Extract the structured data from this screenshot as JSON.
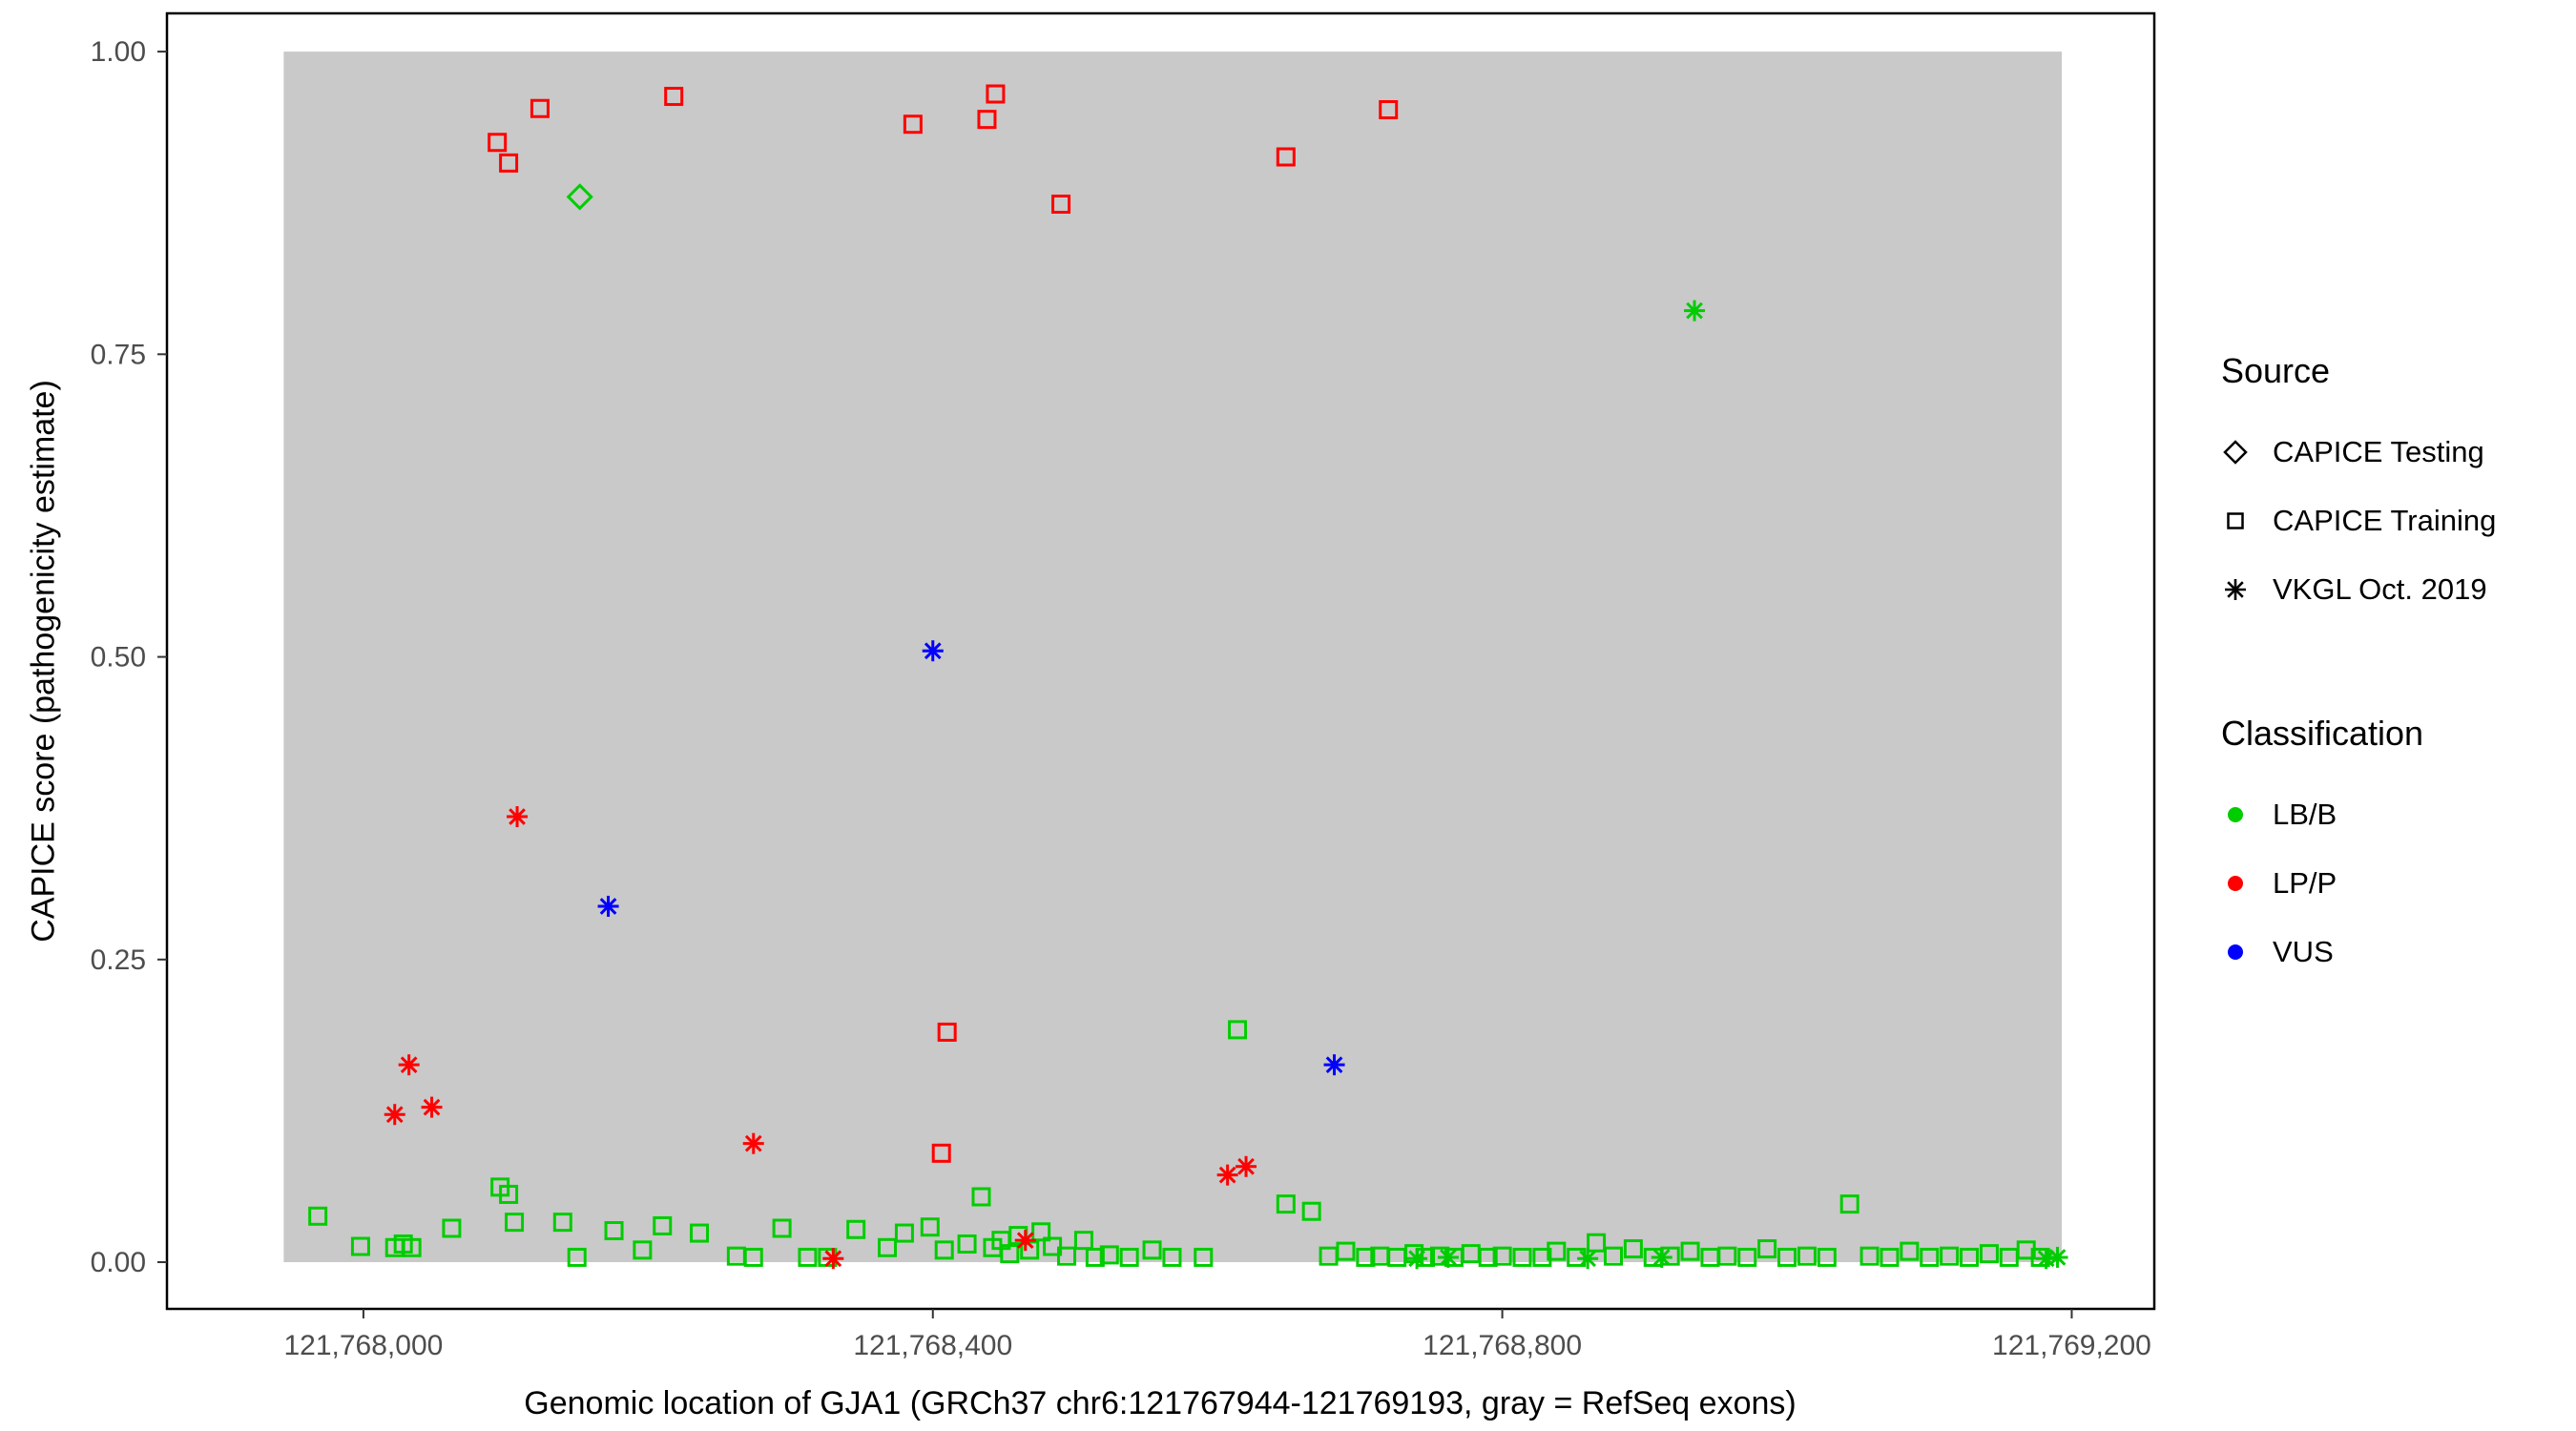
{
  "legend": {
    "source": {
      "title": "Source",
      "items": [
        {
          "label": "CAPICE Testing",
          "marker": "diamond"
        },
        {
          "label": "CAPICE Training",
          "marker": "square"
        },
        {
          "label": "VKGL Oct. 2019",
          "marker": "asterisk"
        }
      ]
    },
    "classification": {
      "title": "Classification",
      "items": [
        {
          "label": "LB/B",
          "color": "#00CD00"
        },
        {
          "label": "LP/P",
          "color": "#FF0000"
        },
        {
          "label": "VUS",
          "color": "#0000FF"
        }
      ]
    }
  },
  "chart_data": {
    "type": "scatter",
    "title": "",
    "xlabel": "Genomic location of GJA1 (GRCh37 chr6:121767944-121769193, gray = RefSeq exons)",
    "ylabel": "CAPICE score (pathogenicity estimate)",
    "xlim": [
      121767862,
      121769258
    ],
    "ylim": [
      -0.0386,
      1.0316
    ],
    "x_ticks": [
      121768000,
      121768400,
      121768800,
      121769200
    ],
    "x_tick_labels": [
      "121,768,000",
      "121,768,400",
      "121,768,800",
      "121,769,200"
    ],
    "y_ticks": [
      0,
      0.25,
      0.5,
      0.75,
      1
    ],
    "y_tick_labels": [
      "0.00",
      "0.25",
      "0.50",
      "0.75",
      "1.00"
    ],
    "grid": false,
    "legend_position": "right",
    "exon_region": {
      "start": 121767944,
      "end": 121769193,
      "color": "#C9C9C9"
    },
    "colors": {
      "LB/B": "#00CD00",
      "LP/P": "#FF0000",
      "VUS": "#0000FF"
    },
    "series": [
      {
        "name": "CAPICE Testing",
        "shape": "diamond",
        "points": [
          [
            121768152,
            0.88,
            "LB/B"
          ]
        ]
      },
      {
        "name": "CAPICE Training",
        "shape": "square",
        "points": [
          [
            121768094,
            0.925,
            "LP/P"
          ],
          [
            121768102,
            0.908,
            "LP/P"
          ],
          [
            121768124,
            0.953,
            "LP/P"
          ],
          [
            121768218,
            0.963,
            "LP/P"
          ],
          [
            121768386,
            0.94,
            "LP/P"
          ],
          [
            121768438,
            0.944,
            "LP/P"
          ],
          [
            121768444,
            0.965,
            "LP/P"
          ],
          [
            121768490,
            0.874,
            "LP/P"
          ],
          [
            121768648,
            0.913,
            "LP/P"
          ],
          [
            121768720,
            0.952,
            "LP/P"
          ],
          [
            121768410,
            0.19,
            "LP/P"
          ],
          [
            121768406,
            0.09,
            "LP/P"
          ],
          [
            121767968,
            0.038,
            "LB/B"
          ],
          [
            121767998,
            0.013,
            "LB/B"
          ],
          [
            121768022,
            0.012,
            "LB/B"
          ],
          [
            121768028,
            0.015,
            "LB/B"
          ],
          [
            121768034,
            0.012,
            "LB/B"
          ],
          [
            121768062,
            0.028,
            "LB/B"
          ],
          [
            121768096,
            0.062,
            "LB/B"
          ],
          [
            121768102,
            0.056,
            "LB/B"
          ],
          [
            121768106,
            0.033,
            "LB/B"
          ],
          [
            121768140,
            0.033,
            "LB/B"
          ],
          [
            121768150,
            0.004,
            "LB/B"
          ],
          [
            121768176,
            0.026,
            "LB/B"
          ],
          [
            121768196,
            0.01,
            "LB/B"
          ],
          [
            121768210,
            0.03,
            "LB/B"
          ],
          [
            121768236,
            0.024,
            "LB/B"
          ],
          [
            121768262,
            0.005,
            "LB/B"
          ],
          [
            121768274,
            0.004,
            "LB/B"
          ],
          [
            121768294,
            0.028,
            "LB/B"
          ],
          [
            121768312,
            0.004,
            "LB/B"
          ],
          [
            121768326,
            0.004,
            "LB/B"
          ],
          [
            121768346,
            0.027,
            "LB/B"
          ],
          [
            121768368,
            0.012,
            "LB/B"
          ],
          [
            121768380,
            0.024,
            "LB/B"
          ],
          [
            121768398,
            0.029,
            "LB/B"
          ],
          [
            121768408,
            0.01,
            "LB/B"
          ],
          [
            121768424,
            0.015,
            "LB/B"
          ],
          [
            121768434,
            0.054,
            "LB/B"
          ],
          [
            121768442,
            0.012,
            "LB/B"
          ],
          [
            121768448,
            0.018,
            "LB/B"
          ],
          [
            121768454,
            0.007,
            "LB/B"
          ],
          [
            121768460,
            0.022,
            "LB/B"
          ],
          [
            121768468,
            0.01,
            "LB/B"
          ],
          [
            121768476,
            0.025,
            "LB/B"
          ],
          [
            121768484,
            0.013,
            "LB/B"
          ],
          [
            121768494,
            0.005,
            "LB/B"
          ],
          [
            121768506,
            0.018,
            "LB/B"
          ],
          [
            121768514,
            0.004,
            "LB/B"
          ],
          [
            121768524,
            0.006,
            "LB/B"
          ],
          [
            121768538,
            0.004,
            "LB/B"
          ],
          [
            121768554,
            0.01,
            "LB/B"
          ],
          [
            121768568,
            0.004,
            "LB/B"
          ],
          [
            121768590,
            0.004,
            "LB/B"
          ],
          [
            121768614,
            0.192,
            "LB/B"
          ],
          [
            121768648,
            0.048,
            "LB/B"
          ],
          [
            121768666,
            0.042,
            "LB/B"
          ],
          [
            121768678,
            0.005,
            "LB/B"
          ],
          [
            121768690,
            0.009,
            "LB/B"
          ],
          [
            121768704,
            0.004,
            "LB/B"
          ],
          [
            121768714,
            0.005,
            "LB/B"
          ],
          [
            121768726,
            0.004,
            "LB/B"
          ],
          [
            121768738,
            0.007,
            "LB/B"
          ],
          [
            121768746,
            0.004,
            "LB/B"
          ],
          [
            121768756,
            0.005,
            "LB/B"
          ],
          [
            121768766,
            0.004,
            "LB/B"
          ],
          [
            121768778,
            0.007,
            "LB/B"
          ],
          [
            121768790,
            0.004,
            "LB/B"
          ],
          [
            121768800,
            0.005,
            "LB/B"
          ],
          [
            121768814,
            0.004,
            "LB/B"
          ],
          [
            121768828,
            0.004,
            "LB/B"
          ],
          [
            121768838,
            0.009,
            "LB/B"
          ],
          [
            121768852,
            0.004,
            "LB/B"
          ],
          [
            121768866,
            0.016,
            "LB/B"
          ],
          [
            121768878,
            0.005,
            "LB/B"
          ],
          [
            121768892,
            0.011,
            "LB/B"
          ],
          [
            121768906,
            0.004,
            "LB/B"
          ],
          [
            121768918,
            0.005,
            "LB/B"
          ],
          [
            121768932,
            0.009,
            "LB/B"
          ],
          [
            121768946,
            0.004,
            "LB/B"
          ],
          [
            121768958,
            0.005,
            "LB/B"
          ],
          [
            121768972,
            0.004,
            "LB/B"
          ],
          [
            121768986,
            0.011,
            "LB/B"
          ],
          [
            121769000,
            0.004,
            "LB/B"
          ],
          [
            121769014,
            0.005,
            "LB/B"
          ],
          [
            121769028,
            0.004,
            "LB/B"
          ],
          [
            121769044,
            0.048,
            "LB/B"
          ],
          [
            121769058,
            0.005,
            "LB/B"
          ],
          [
            121769072,
            0.004,
            "LB/B"
          ],
          [
            121769086,
            0.009,
            "LB/B"
          ],
          [
            121769100,
            0.004,
            "LB/B"
          ],
          [
            121769114,
            0.005,
            "LB/B"
          ],
          [
            121769128,
            0.004,
            "LB/B"
          ],
          [
            121769142,
            0.007,
            "LB/B"
          ],
          [
            121769156,
            0.004,
            "LB/B"
          ],
          [
            121769168,
            0.01,
            "LB/B"
          ],
          [
            121769178,
            0.004,
            "LB/B"
          ]
        ]
      },
      {
        "name": "VKGL Oct. 2019",
        "shape": "asterisk",
        "points": [
          [
            121768108,
            0.368,
            "LP/P"
          ],
          [
            121768032,
            0.163,
            "LP/P"
          ],
          [
            121768022,
            0.122,
            "LP/P"
          ],
          [
            121768048,
            0.128,
            "LP/P"
          ],
          [
            121768274,
            0.098,
            "LP/P"
          ],
          [
            121768607,
            0.072,
            "LP/P"
          ],
          [
            121768620,
            0.079,
            "LP/P"
          ],
          [
            121768330,
            0.003,
            "LP/P"
          ],
          [
            121768465,
            0.018,
            "LP/P"
          ],
          [
            121768400,
            0.505,
            "VUS"
          ],
          [
            121768172,
            0.294,
            "VUS"
          ],
          [
            121768682,
            0.163,
            "VUS"
          ],
          [
            121768935,
            0.786,
            "LB/B"
          ],
          [
            121768740,
            0.003,
            "LB/B"
          ],
          [
            121768762,
            0.004,
            "LB/B"
          ],
          [
            121768860,
            0.003,
            "LB/B"
          ],
          [
            121768912,
            0.004,
            "LB/B"
          ],
          [
            121769182,
            0.003,
            "LB/B"
          ],
          [
            121769190,
            0.004,
            "LB/B"
          ]
        ]
      }
    ]
  }
}
